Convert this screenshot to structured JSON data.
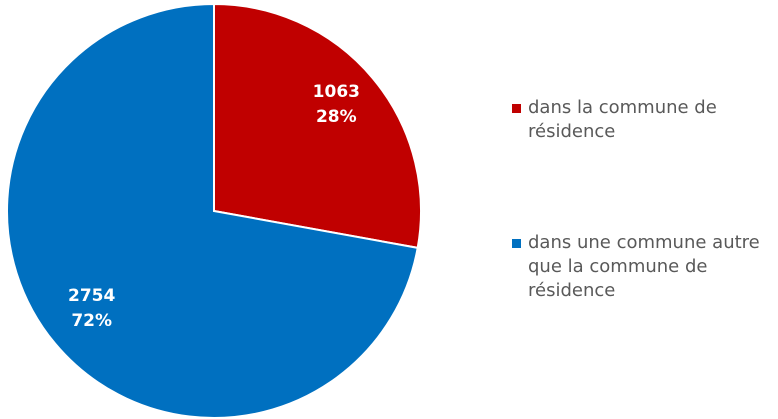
{
  "chart_data": {
    "type": "pie",
    "categories": [
      "dans la commune de résidence",
      "dans une commune autre que la commune de résidence"
    ],
    "values": [
      1063,
      2754
    ],
    "percent_labels": [
      "28%",
      "72%"
    ],
    "colors": [
      "#c00000",
      "#0070c0"
    ],
    "legend": "right"
  }
}
